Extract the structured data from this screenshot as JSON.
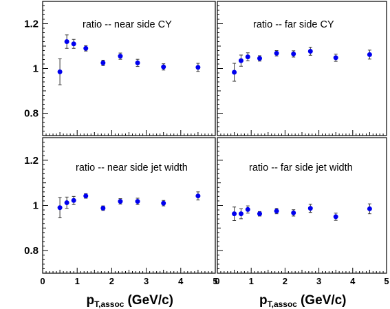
{
  "chart_data": [
    {
      "type": "scatter",
      "annotation": "ratio -- near side CY",
      "xlim": [
        0,
        5
      ],
      "ylim": [
        0.7,
        1.3
      ],
      "yticks": [
        "0.8",
        "1",
        "1.2"
      ],
      "xticks": [],
      "color": "#0000ee",
      "points": [
        {
          "x": 0.5,
          "y": 0.985,
          "err": 0.058
        },
        {
          "x": 0.7,
          "y": 1.12,
          "err": 0.03
        },
        {
          "x": 0.9,
          "y": 1.11,
          "err": 0.02
        },
        {
          "x": 1.25,
          "y": 1.09,
          "err": 0.012
        },
        {
          "x": 1.75,
          "y": 1.025,
          "err": 0.012
        },
        {
          "x": 2.25,
          "y": 1.055,
          "err": 0.014
        },
        {
          "x": 2.75,
          "y": 1.025,
          "err": 0.016
        },
        {
          "x": 3.5,
          "y": 1.007,
          "err": 0.014
        },
        {
          "x": 4.5,
          "y": 1.005,
          "err": 0.018
        }
      ]
    },
    {
      "type": "scatter",
      "annotation": "ratio -- far side CY",
      "xlim": [
        0,
        5
      ],
      "ylim": [
        0.7,
        1.3
      ],
      "yticks": [],
      "xticks": [],
      "color": "#0000ee",
      "points": [
        {
          "x": 0.5,
          "y": 0.983,
          "err": 0.04
        },
        {
          "x": 0.7,
          "y": 1.035,
          "err": 0.025
        },
        {
          "x": 0.9,
          "y": 1.052,
          "err": 0.018
        },
        {
          "x": 1.25,
          "y": 1.045,
          "err": 0.012
        },
        {
          "x": 1.75,
          "y": 1.068,
          "err": 0.012
        },
        {
          "x": 2.25,
          "y": 1.065,
          "err": 0.014
        },
        {
          "x": 2.75,
          "y": 1.077,
          "err": 0.018
        },
        {
          "x": 3.5,
          "y": 1.048,
          "err": 0.016
        },
        {
          "x": 4.5,
          "y": 1.062,
          "err": 0.02
        }
      ]
    },
    {
      "type": "scatter",
      "annotation": "ratio -- near side jet width",
      "xlim": [
        0,
        5
      ],
      "ylim": [
        0.7,
        1.3
      ],
      "yticks": [
        "0.8",
        "1",
        "1.2"
      ],
      "xticks": [
        "0",
        "1",
        "2",
        "3",
        "4",
        "5"
      ],
      "xlabel": "p",
      "xlabel_sub": "T,assoc",
      "xlabel_unit": "(GeV/c)",
      "color": "#0000ee",
      "points": [
        {
          "x": 0.5,
          "y": 0.99,
          "err": 0.045
        },
        {
          "x": 0.7,
          "y": 1.012,
          "err": 0.025
        },
        {
          "x": 0.9,
          "y": 1.022,
          "err": 0.018
        },
        {
          "x": 1.25,
          "y": 1.042,
          "err": 0.01
        },
        {
          "x": 1.75,
          "y": 0.988,
          "err": 0.01
        },
        {
          "x": 2.25,
          "y": 1.018,
          "err": 0.012
        },
        {
          "x": 2.75,
          "y": 1.018,
          "err": 0.014
        },
        {
          "x": 3.5,
          "y": 1.01,
          "err": 0.012
        },
        {
          "x": 4.5,
          "y": 1.042,
          "err": 0.018
        }
      ]
    },
    {
      "type": "scatter",
      "annotation": "ratio -- far side jet width",
      "xlim": [
        0,
        5
      ],
      "ylim": [
        0.7,
        1.3
      ],
      "yticks": [],
      "xticks": [
        "0",
        "1",
        "2",
        "3",
        "4",
        "5"
      ],
      "xlabel": "p",
      "xlabel_sub": "T,assoc",
      "xlabel_unit": "(GeV/c)",
      "color": "#0000ee",
      "points": [
        {
          "x": 0.5,
          "y": 0.963,
          "err": 0.03
        },
        {
          "x": 0.7,
          "y": 0.963,
          "err": 0.022
        },
        {
          "x": 0.9,
          "y": 0.982,
          "err": 0.016
        },
        {
          "x": 1.25,
          "y": 0.963,
          "err": 0.01
        },
        {
          "x": 1.75,
          "y": 0.975,
          "err": 0.012
        },
        {
          "x": 2.25,
          "y": 0.967,
          "err": 0.014
        },
        {
          "x": 2.75,
          "y": 0.987,
          "err": 0.018
        },
        {
          "x": 3.5,
          "y": 0.95,
          "err": 0.016
        },
        {
          "x": 4.5,
          "y": 0.985,
          "err": 0.022
        }
      ]
    }
  ]
}
